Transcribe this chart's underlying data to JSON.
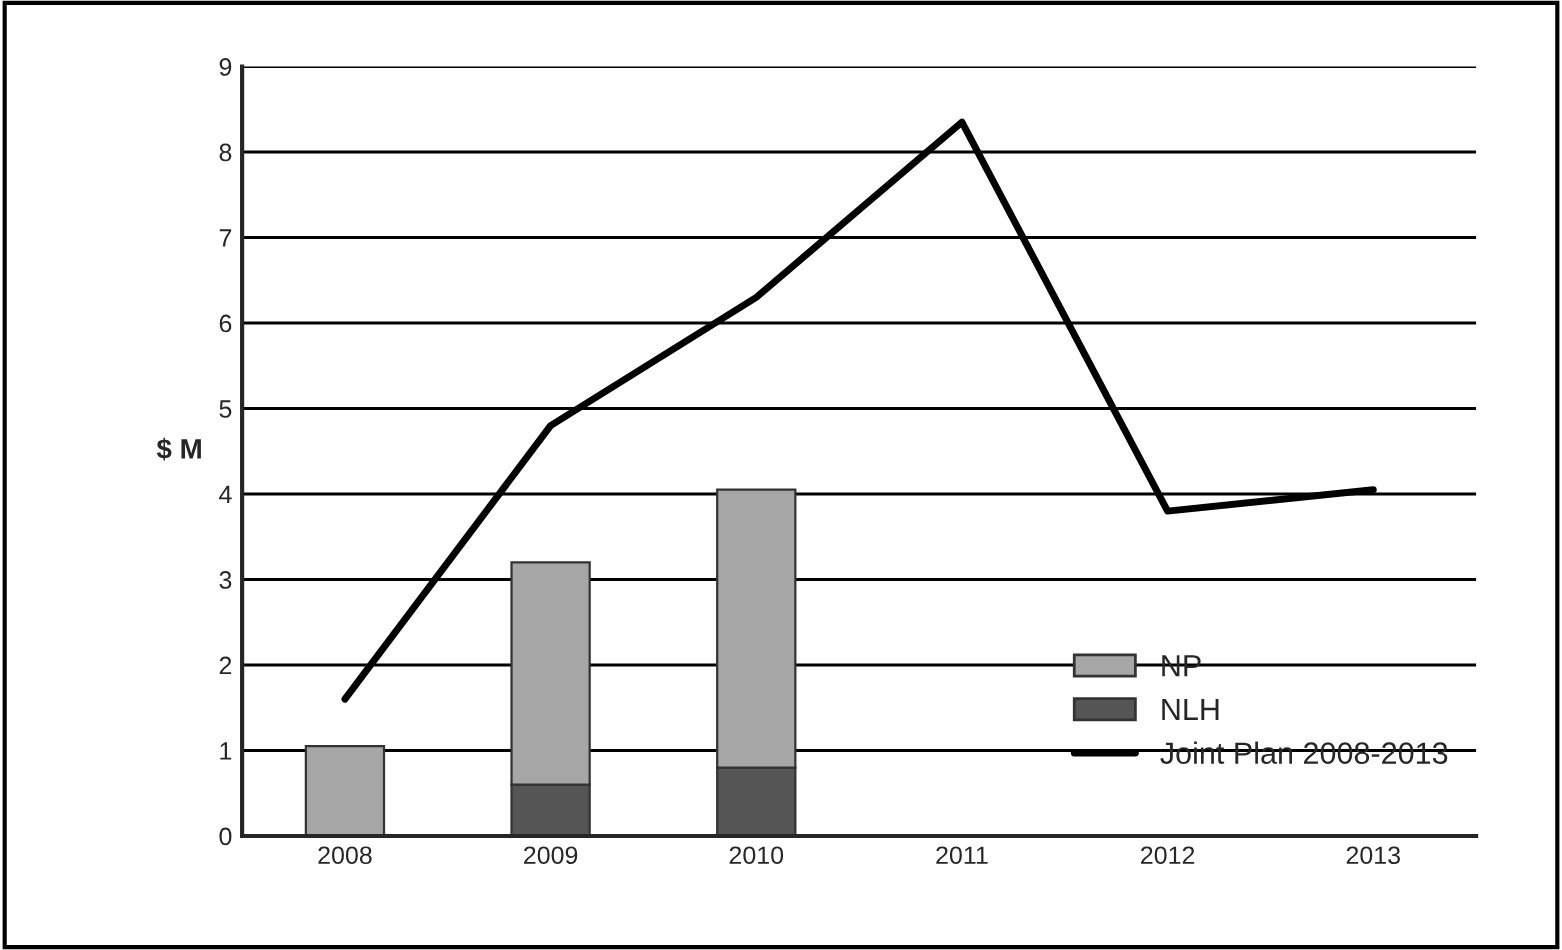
{
  "chart_data": {
    "type": "bar",
    "stacked": true,
    "ylabel": "$ M",
    "categories": [
      "2008",
      "2009",
      "2010",
      "2011",
      "2012",
      "2013"
    ],
    "series": [
      {
        "name": "NLH",
        "color": "#555555",
        "values": [
          null,
          0.6,
          0.8,
          null,
          null,
          null
        ]
      },
      {
        "name": "NP",
        "color": "#a6a6a6",
        "values": [
          1.05,
          2.6,
          3.25,
          null,
          null,
          null
        ]
      },
      {
        "name": "Joint Plan 2008-2013",
        "type": "line",
        "color": "#000000",
        "values": [
          1.6,
          4.8,
          6.3,
          8.35,
          3.8,
          4.05
        ]
      }
    ],
    "ylim": [
      0,
      9
    ],
    "yticks": [
      0,
      1,
      2,
      3,
      4,
      5,
      6,
      7,
      8,
      9
    ],
    "grid": "y",
    "legend": "bottom right",
    "marker": "none",
    "line_style": "solid"
  }
}
